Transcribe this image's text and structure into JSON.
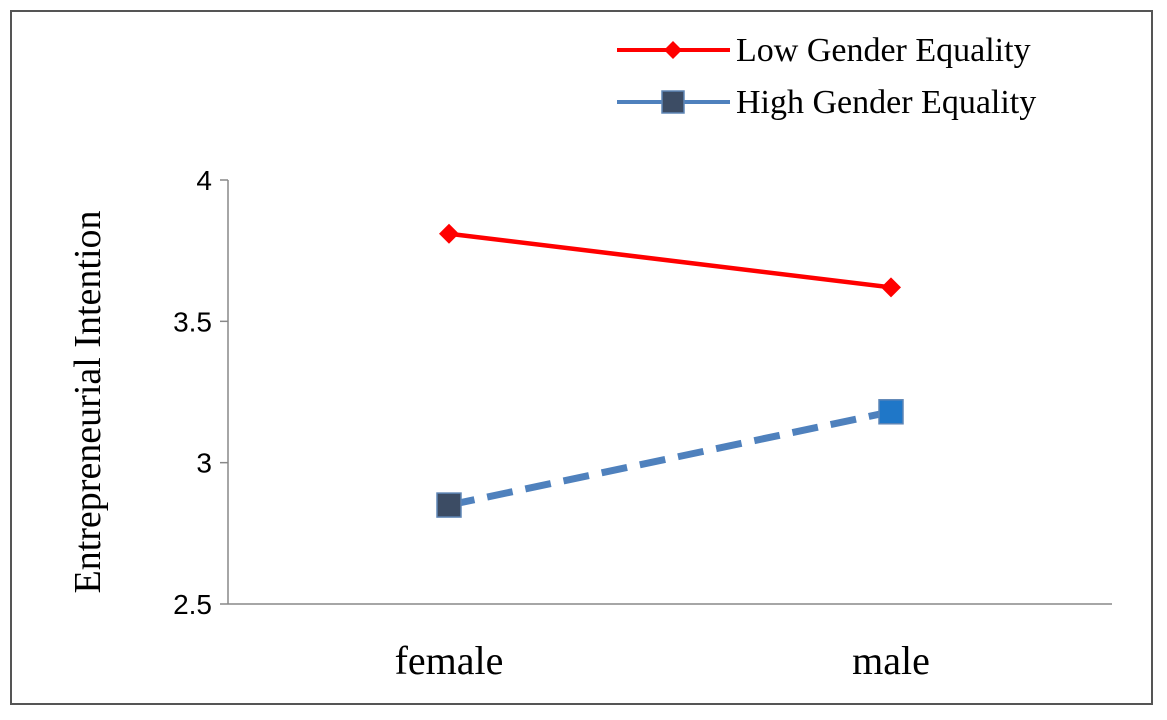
{
  "chart_data": {
    "type": "line",
    "title": "",
    "xlabel": "",
    "ylabel": "Entrepreneurial Intention",
    "categories": [
      "female",
      "male"
    ],
    "yticks": [
      "2.5",
      "3",
      "3.5",
      "4"
    ],
    "ylim": [
      2.5,
      4
    ],
    "grid": false,
    "legend_position": "top-right",
    "series": [
      {
        "name": "Low Gender Equality",
        "values": [
          3.81,
          3.62
        ],
        "color": "#ff0000",
        "line_style": "solid",
        "marker": "diamond"
      },
      {
        "name": "High Gender Equality",
        "values": [
          2.85,
          3.18
        ],
        "color": "#4f81bd",
        "line_style": "dashed",
        "marker": "square",
        "marker_colors": [
          "#3c4c64",
          "#1f77c8"
        ]
      }
    ]
  }
}
